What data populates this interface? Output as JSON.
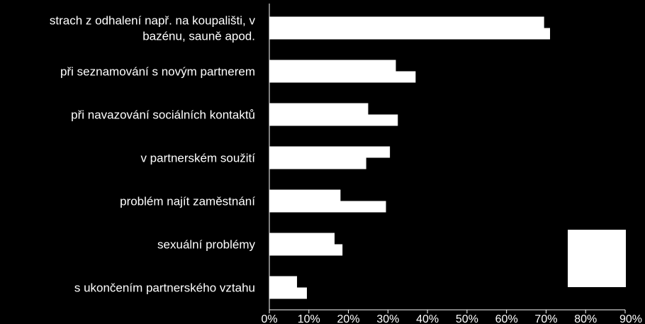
{
  "chart_data": {
    "type": "bar",
    "orientation": "horizontal",
    "categories": [
      [
        "strach z odhalení např. na koupališti, v",
        "bazénu, sauně  apod."
      ],
      [
        "při seznamování s novým partnerem"
      ],
      [
        "při navazování sociálních kontaktů"
      ],
      [
        "v partnerském soužití"
      ],
      [
        "problém najít zaměstnání"
      ],
      [
        "sexuální problémy"
      ],
      [
        "s ukončením partnerského vztahu"
      ]
    ],
    "series": [
      {
        "values": [
          69.5,
          32,
          25,
          30.5,
          18,
          16.5,
          7
        ]
      },
      {
        "values": [
          71,
          37,
          32.5,
          24.5,
          29.5,
          18.5,
          9.5
        ]
      }
    ],
    "xlim": [
      0,
      90
    ],
    "xticks": [
      "0%",
      "10%",
      "20%",
      "30%",
      "40%",
      "50%",
      "60%",
      "70%",
      "80%",
      "90%"
    ],
    "colors": {
      "background": "#000000",
      "bars": "#ffffff",
      "axis": "#ffffff"
    },
    "grid": false,
    "legend": "bottom-right"
  }
}
